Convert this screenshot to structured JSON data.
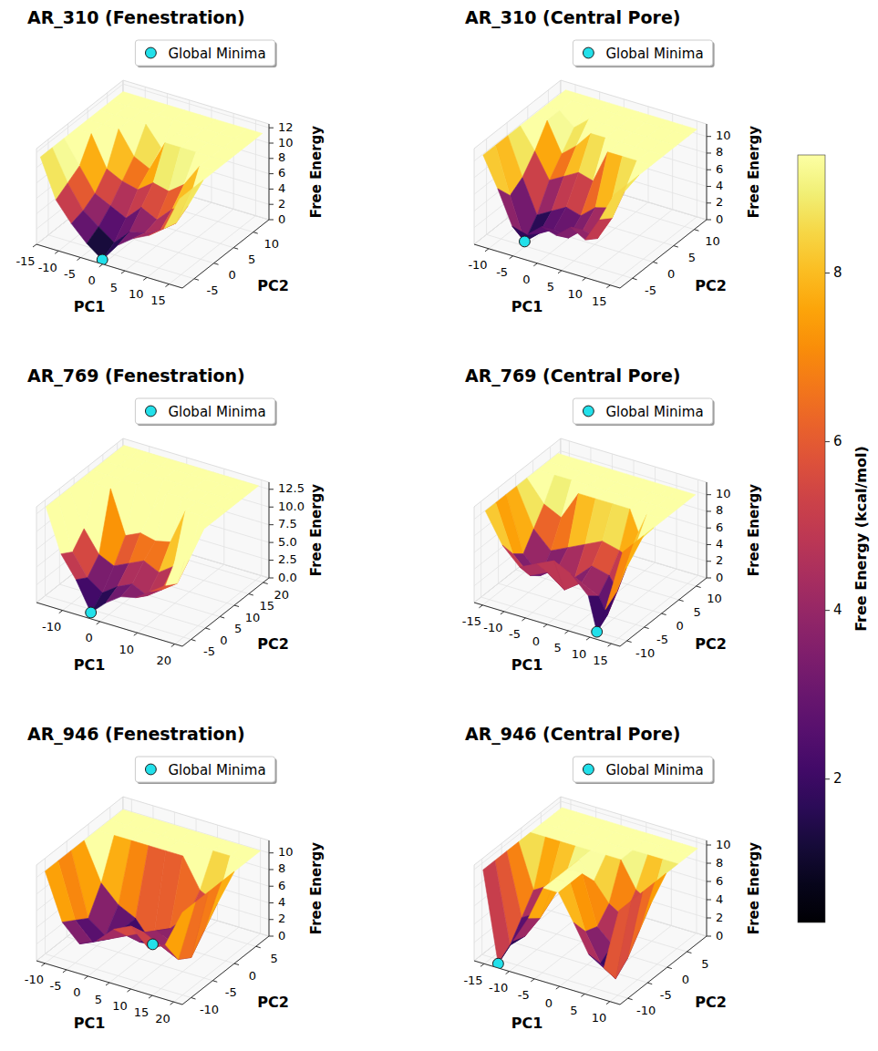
{
  "chart_data": [
    {
      "type": "surface",
      "title": "AR_310 (Fenestration)",
      "x_label": "PC1",
      "y_label": "PC2",
      "z_label": "Free Energy",
      "x": [
        -15,
        -11.5,
        -8,
        -4.5,
        -1,
        2.5,
        6,
        9.5,
        13,
        16.5
      ],
      "y": [
        -7,
        -4,
        -1,
        2,
        5,
        8,
        11,
        14
      ],
      "z": [
        [
          11,
          6,
          3.5,
          1.5,
          0,
          2.5,
          4,
          5,
          6.5,
          11
        ],
        [
          11,
          7,
          4,
          2.5,
          1,
          3,
          3.5,
          4.5,
          6,
          11
        ],
        [
          11,
          8,
          5,
          4,
          3,
          5,
          4,
          6,
          7,
          11
        ],
        [
          11,
          11,
          7,
          6,
          5.5,
          7,
          6.5,
          8,
          11,
          11
        ],
        [
          11,
          11,
          11,
          8,
          7,
          11,
          11,
          11,
          11,
          11
        ],
        [
          11,
          11,
          11,
          11,
          8.5,
          11,
          11,
          11,
          11,
          11
        ],
        [
          11,
          11,
          11,
          11,
          11,
          11,
          11,
          11,
          11,
          11
        ],
        [
          11,
          11,
          11,
          11,
          11,
          11,
          11,
          11,
          11,
          11
        ]
      ],
      "xlim": [
        -15,
        18
      ],
      "xticks": [
        -15,
        -10,
        -5,
        0,
        5,
        10,
        15
      ],
      "ylim": [
        -8,
        14
      ],
      "yticks": [
        -5,
        0,
        5,
        10
      ],
      "zlim": [
        0,
        12.5
      ],
      "zticks": [
        0,
        2,
        4,
        6,
        8,
        10,
        12
      ],
      "grid": true,
      "legend": "top",
      "global_minimum": {
        "name": "Global Minima",
        "x": -1,
        "y": -7,
        "z": 0,
        "color": "#22e0ea",
        "marker": "circle"
      }
    },
    {
      "type": "surface",
      "title": "AR_310 (Central Pore)",
      "x_label": "PC1",
      "y_label": "PC2",
      "z_label": "Free Energy",
      "x": [
        -12,
        -9,
        -6,
        -3,
        0,
        3,
        6,
        9,
        12,
        15
      ],
      "y": [
        -7,
        -4,
        -1,
        2,
        5,
        8,
        11,
        13
      ],
      "z": [
        [
          10.5,
          7,
          3,
          2.5,
          4,
          3.5,
          5,
          4,
          7,
          10.5
        ],
        [
          10.5,
          5,
          0,
          1.5,
          2.5,
          2,
          3.5,
          3,
          6,
          10.5
        ],
        [
          10.5,
          6,
          2,
          3,
          4,
          3.5,
          5,
          5.5,
          8,
          10.5
        ],
        [
          10.5,
          8,
          5,
          6,
          7,
          6.5,
          10.5,
          10.5,
          10.5,
          10.5
        ],
        [
          10.5,
          10.5,
          7,
          8.5,
          10.5,
          10.5,
          10.5,
          10.5,
          10.5,
          10.5
        ],
        [
          10.5,
          10.5,
          9,
          10.5,
          10.5,
          10.5,
          10.5,
          10.5,
          10.5,
          10.5
        ],
        [
          10.5,
          10.5,
          10.5,
          10.5,
          10.5,
          10.5,
          10.5,
          10.5,
          10.5,
          10.5
        ],
        [
          10.5,
          10.5,
          10.5,
          10.5,
          10.5,
          10.5,
          10.5,
          10.5,
          10.5,
          10.5
        ]
      ],
      "xlim": [
        -13,
        17
      ],
      "xticks": [
        -10,
        -5,
        0,
        5,
        10,
        15
      ],
      "ylim": [
        -8,
        13
      ],
      "yticks": [
        -5,
        0,
        5,
        10
      ],
      "zlim": [
        0,
        11.5
      ],
      "zticks": [
        0,
        2,
        4,
        6,
        8,
        10
      ],
      "grid": true,
      "legend": "top",
      "global_minimum": {
        "name": "Global Minima",
        "x": -6,
        "y": -4,
        "z": 0,
        "color": "#22e0ea",
        "marker": "circle"
      }
    },
    {
      "type": "surface",
      "title": "AR_769 (Fenestration)",
      "x_label": "PC1",
      "y_label": "PC2",
      "z_label": "Free Energy",
      "x": [
        -16,
        -12,
        -8,
        -4,
        0,
        4,
        8,
        12,
        16,
        20
      ],
      "y": [
        -6,
        -2,
        2,
        6,
        10,
        14,
        18,
        21
      ],
      "z": [
        [
          13,
          7,
          4,
          0,
          2,
          3.5,
          4,
          5.5,
          7,
          13
        ],
        [
          13,
          6,
          3,
          1.5,
          3,
          4,
          3,
          4.5,
          6,
          13
        ],
        [
          13,
          8,
          5,
          4,
          5,
          6,
          5,
          6.5,
          8,
          13
        ],
        [
          13,
          13,
          13,
          7,
          8,
          7.5,
          8,
          13,
          13,
          13
        ],
        [
          13,
          13,
          13,
          13,
          10,
          13,
          13,
          13,
          13,
          13
        ],
        [
          13,
          13,
          13,
          13,
          13,
          13,
          13,
          13,
          13,
          13
        ],
        [
          13,
          13,
          13,
          13,
          13,
          13,
          13,
          13,
          13,
          13
        ],
        [
          13,
          13,
          13,
          13,
          13,
          13,
          13,
          13,
          13,
          13
        ]
      ],
      "xlim": [
        -17,
        22
      ],
      "xticks": [
        -10,
        0,
        10,
        20
      ],
      "ylim": [
        -8,
        22
      ],
      "yticks": [
        -5,
        0,
        5,
        10,
        15,
        20
      ],
      "zlim": [
        0,
        13.5
      ],
      "zticks": [
        {
          "value": 0,
          "label": "0.0"
        },
        2.5,
        {
          "value": 5,
          "label": "5.0"
        },
        7.5,
        {
          "value": 10,
          "label": "10.0"
        },
        12.5
      ],
      "grid": true,
      "legend": "top",
      "global_minimum": {
        "name": "Global Minima",
        "x": -4,
        "y": -6,
        "z": 0,
        "color": "#22e0ea",
        "marker": "circle"
      }
    },
    {
      "type": "surface",
      "title": "AR_769 (Central Pore)",
      "x_label": "PC1",
      "y_label": "PC2",
      "z_label": "Free Energy",
      "x": [
        -16,
        -12,
        -8,
        -4,
        0,
        4,
        8,
        10,
        12,
        16
      ],
      "y": [
        -10,
        -7,
        -4,
        -1,
        2,
        5,
        8,
        11
      ],
      "z": [
        [
          10.5,
          7,
          5,
          6,
          7,
          6,
          4,
          0,
          3,
          10.5
        ],
        [
          10.5,
          5,
          3,
          4,
          2.5,
          4,
          3,
          1,
          4,
          10.5
        ],
        [
          10.5,
          4,
          2,
          3.5,
          3,
          5,
          4.5,
          3,
          6,
          10.5
        ],
        [
          10.5,
          6,
          4,
          5,
          6,
          7,
          6.5,
          6,
          8,
          10.5
        ],
        [
          10.5,
          8,
          7,
          10.5,
          10.5,
          10.5,
          10.5,
          8,
          10.5,
          10.5
        ],
        [
          10.5,
          10.5,
          10.5,
          10.5,
          10.5,
          10.5,
          10.5,
          10.5,
          10.5,
          10.5
        ],
        [
          10.5,
          10.5,
          10.5,
          10.5,
          10.5,
          10.5,
          10.5,
          10.5,
          10.5,
          10.5
        ],
        [
          10.5,
          10.5,
          10.5,
          10.5,
          10.5,
          10.5,
          10.5,
          10.5,
          10.5,
          10.5
        ]
      ],
      "xlim": [
        -17,
        17
      ],
      "xticks": [
        -15,
        -10,
        -5,
        0,
        5,
        10,
        15
      ],
      "ylim": [
        -12,
        13
      ],
      "yticks": [
        -10,
        -5,
        0,
        5,
        10
      ],
      "zlim": [
        0,
        11.5
      ],
      "zticks": [
        0,
        2,
        4,
        6,
        8,
        10
      ],
      "grid": true,
      "legend": "top",
      "global_minimum": {
        "name": "Global Minima",
        "x": 10,
        "y": -10,
        "z": 0,
        "color": "#22e0ea",
        "marker": "circle"
      }
    },
    {
      "type": "surface",
      "title": "AR_946 (Fenestration)",
      "x_label": "PC1",
      "y_label": "PC2",
      "z_label": "Free Energy",
      "x": [
        -11,
        -7,
        -3,
        1,
        5,
        9,
        13,
        17,
        21
      ],
      "y": [
        -11,
        -8,
        -5,
        -2,
        1,
        4,
        7
      ],
      "z": [
        [
          10.5,
          5,
          3,
          4,
          6,
          7,
          5,
          6,
          10.5
        ],
        [
          10.5,
          4,
          2,
          3,
          4,
          5,
          4,
          3,
          10.5
        ],
        [
          10.5,
          3,
          1.5,
          3,
          2,
          4,
          3,
          2,
          10.5
        ],
        [
          10.5,
          6,
          4,
          3,
          0.5,
          3,
          5,
          4,
          10.5
        ],
        [
          10.5,
          10.5,
          10.5,
          10.5,
          10.5,
          10.5,
          7,
          6,
          10.5
        ],
        [
          10.5,
          10.5,
          10.5,
          10.5,
          10.5,
          10.5,
          10.5,
          10.5,
          10.5
        ],
        [
          10.5,
          10.5,
          10.5,
          10.5,
          10.5,
          10.5,
          10.5,
          10.5,
          10.5
        ]
      ],
      "xlim": [
        -12,
        22
      ],
      "xticks": [
        -10,
        -5,
        0,
        5,
        10,
        15,
        20
      ],
      "ylim": [
        -12,
        8
      ],
      "yticks": [
        -10,
        -5,
        0,
        5
      ],
      "zlim": [
        0,
        11.5
      ],
      "zticks": [
        0,
        2,
        4,
        6,
        8,
        10
      ],
      "grid": true,
      "legend": "top",
      "global_minimum": {
        "name": "Global Minima",
        "x": 5,
        "y": -2,
        "z": 0.5,
        "color": "#22e0ea",
        "marker": "circle"
      }
    },
    {
      "type": "surface",
      "title": "AR_946 (Central Pore)",
      "x_label": "PC1",
      "y_label": "PC2",
      "z_label": "Free Energy",
      "x": [
        -16,
        -13,
        -10,
        -7,
        -4,
        -1,
        2,
        5,
        8,
        11
      ],
      "y": [
        -11,
        -8,
        -5,
        -2,
        1,
        4,
        7,
        9
      ],
      "z": [
        [
          9.8,
          0,
          3,
          6,
          9.8,
          9.8,
          7,
          4,
          3,
          9.8
        ],
        [
          9.8,
          1,
          2.5,
          5,
          9.8,
          9.8,
          5,
          2,
          0.8,
          9.8
        ],
        [
          9.8,
          3,
          4,
          6,
          9.8,
          9.8,
          4.5,
          3,
          2,
          9.8
        ],
        [
          9.8,
          5,
          6,
          7,
          9.8,
          8,
          6,
          5,
          4,
          9.8
        ],
        [
          9.8,
          9.8,
          9.8,
          9.8,
          9.8,
          9.8,
          9.8,
          7,
          6,
          9.8
        ],
        [
          9.8,
          9.8,
          9.8,
          9.8,
          9.8,
          9.8,
          9.8,
          9.8,
          9.8,
          9.8
        ],
        [
          9.8,
          9.8,
          9.8,
          9.8,
          9.8,
          9.8,
          9.8,
          9.8,
          9.8,
          9.8
        ],
        [
          9.8,
          9.8,
          9.8,
          9.8,
          9.8,
          9.8,
          9.8,
          9.8,
          9.8,
          9.8
        ]
      ],
      "xlim": [
        -17,
        12
      ],
      "xticks": [
        -15,
        -10,
        -5,
        0,
        5,
        10
      ],
      "ylim": [
        -12,
        10
      ],
      "yticks": [
        -10,
        -5,
        0,
        5
      ],
      "zlim": [
        0,
        10.5
      ],
      "zticks": [
        0,
        2,
        4,
        6,
        8,
        10
      ],
      "grid": true,
      "legend": "top",
      "global_minimum": {
        "name": "Global Minima",
        "x": -13,
        "y": -11,
        "z": 0,
        "color": "#22e0ea",
        "marker": "circle"
      }
    }
  ],
  "colorbar": {
    "label": "Free Energy (kcal/mol)",
    "range": [
      0.3,
      9.4
    ],
    "ticks": [
      2,
      4,
      6,
      8
    ]
  }
}
